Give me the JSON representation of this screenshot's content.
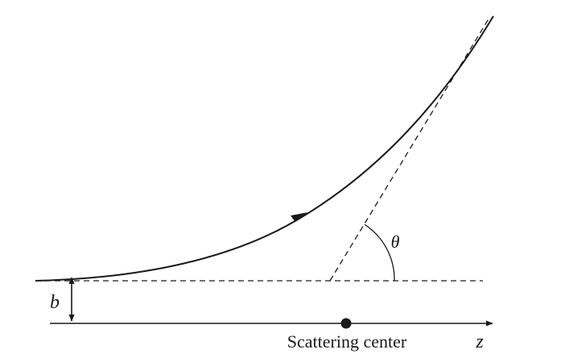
{
  "diagram": {
    "labels": {
      "impact_parameter": "b",
      "angle": "θ",
      "center": "Scattering center",
      "axis": "z"
    },
    "colors": {
      "ink": "#1a1a1a",
      "background": "#ffffff"
    }
  }
}
